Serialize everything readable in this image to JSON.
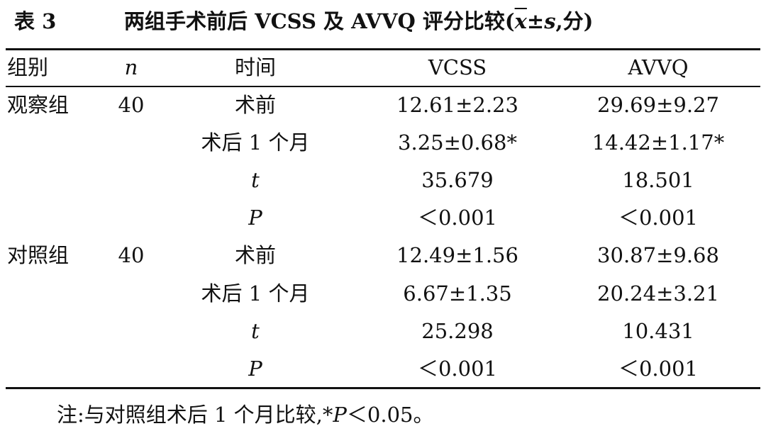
{
  "header": {
    "label": "表 3",
    "title": [
      "两组手术前后 VCSS 及 AVVQ 评分比较(",
      "x",
      "±",
      "s",
      ",分)"
    ]
  },
  "table": {
    "columns": [
      "组别",
      "n",
      "时间",
      "VCSS",
      "AVVQ"
    ],
    "groups": [
      {
        "name": "观察组",
        "n": "40",
        "rows": [
          [
            "术前",
            "12.61±2.23",
            "29.69±9.27"
          ],
          [
            "术后 1 个月",
            "3.25±0.68*",
            "14.42±1.17*"
          ]
        ],
        "stats": [
          [
            "t",
            "35.679",
            "18.501"
          ],
          [
            "P",
            "＜0.001",
            "＜0.001"
          ]
        ]
      },
      {
        "name": "对照组",
        "n": "40",
        "rows": [
          [
            "术前",
            "12.49±1.56",
            "30.87±9.68"
          ],
          [
            "术后 1 个月",
            "6.67±1.35",
            "20.24±3.21"
          ]
        ],
        "stats": [
          [
            "t",
            "25.298",
            "10.431"
          ],
          [
            "P",
            "＜0.001",
            "＜0.001"
          ]
        ]
      }
    ]
  },
  "note": [
    "注:与对照组术后 1 个月比较,*",
    "P",
    "＜0.05。"
  ]
}
